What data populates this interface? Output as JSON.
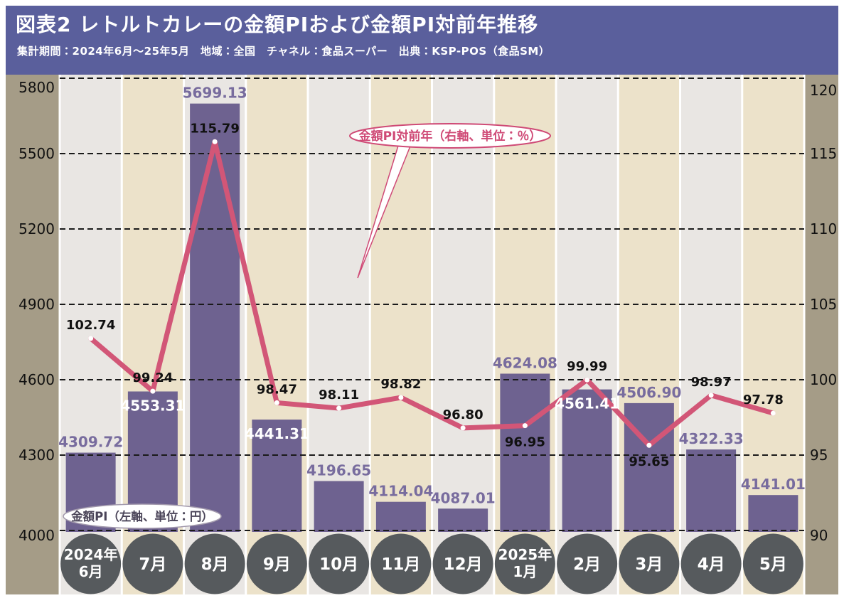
{
  "header": {
    "title": "図表2 レトルトカレーの金額PIおよび金額PI対前年推移",
    "subtitle": "集計期間：2024年6月～25年5月　地域：全国　チャネル：食品スーパー　出典：KSP-POS（食品SM）"
  },
  "colors": {
    "header_bg": "#5a5f9c",
    "chart_margin": "#a59c87",
    "band_gray": "#e9e6e3",
    "band_beige": "#ece2ca",
    "bar": "#6e6290",
    "bar_label": "#786c9e",
    "bar_label_inside": "#ffffff",
    "line": "#d25677",
    "line_label": "#111111",
    "grid": "#1a1a1a",
    "month_circle": "#565a5d",
    "month_text": "#ffffff",
    "callout_pink": "#cf4a76",
    "callout_bar_text": "#4a4458",
    "axis_text": "#111111"
  },
  "chart_data": {
    "type": "bar+line combo",
    "grid": "horizontal dashed",
    "categories": [
      [
        "2024年",
        "6月"
      ],
      [
        "7月"
      ],
      [
        "8月"
      ],
      [
        "9月"
      ],
      [
        "10月"
      ],
      [
        "11月"
      ],
      [
        "12月"
      ],
      [
        "2025年",
        "1月"
      ],
      [
        "2月"
      ],
      [
        "3月"
      ],
      [
        "4月"
      ],
      [
        "5月"
      ]
    ],
    "series": [
      {
        "name": "金額PI",
        "type": "bar",
        "axis": "left",
        "unit": "円",
        "values": [
          4309.72,
          4553.31,
          5699.13,
          4441.31,
          4196.65,
          4114.04,
          4087.01,
          4624.08,
          4561.41,
          4506.9,
          4322.33,
          4141.01
        ],
        "label_inside": [
          false,
          true,
          false,
          true,
          false,
          false,
          false,
          false,
          true,
          false,
          false,
          false
        ]
      },
      {
        "name": "金額PI対前年",
        "type": "line",
        "axis": "right",
        "unit": "%",
        "values": [
          102.74,
          99.24,
          115.79,
          98.47,
          98.11,
          98.82,
          96.8,
          96.95,
          99.99,
          95.65,
          98.97,
          97.78
        ],
        "label_pos": [
          "above",
          "above",
          "above",
          "above",
          "above",
          "above",
          "above",
          "below",
          "above",
          "below",
          "above",
          "above"
        ],
        "label_dx": [
          0,
          0,
          0,
          0,
          0,
          0,
          0,
          0,
          0,
          0,
          0,
          -14
        ]
      }
    ],
    "left_axis": {
      "ticks": [
        5800,
        5500,
        5200,
        4900,
        4600,
        4300,
        4000
      ],
      "min": 4000,
      "max": 5800,
      "step": 300
    },
    "right_axis": {
      "ticks": [
        120,
        115,
        110,
        105,
        100,
        95,
        90
      ],
      "min": 90,
      "max": 120,
      "step": 5
    },
    "annotations": {
      "line_callout": "金額PI対前年（右軸、単位：％）",
      "bar_callout": "金額PI（左軸、単位：円）"
    },
    "legend_position": "callouts-inside-plot"
  }
}
